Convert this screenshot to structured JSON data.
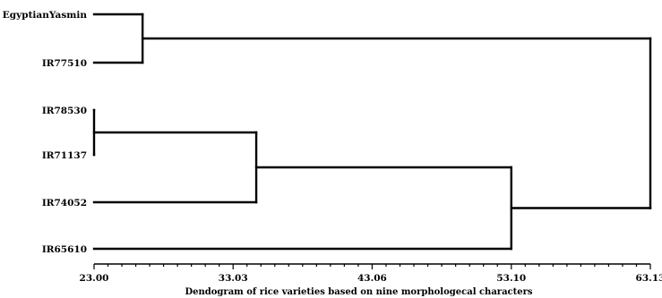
{
  "dendrogram": {
    "leaves": [
      {
        "id": "egyptian",
        "label": "EgyptianYasmin"
      },
      {
        "id": "ir77510",
        "label": "IR77510"
      },
      {
        "id": "ir78530",
        "label": "IR78530"
      },
      {
        "id": "ir71137",
        "label": "IR71137"
      },
      {
        "id": "ir74052",
        "label": "IR74052"
      },
      {
        "id": "ir65610",
        "label": "IR65610"
      }
    ],
    "merges": [
      {
        "id": "m1",
        "left": "ir78530",
        "right": "ir71137",
        "height": 23.0
      },
      {
        "id": "m2",
        "left": "egyptian",
        "right": "ir77510",
        "height": 26.5
      },
      {
        "id": "m3",
        "left": "m1",
        "right": "ir74052",
        "height": 34.7
      },
      {
        "id": "m4",
        "left": "m3",
        "right": "ir65610",
        "height": 53.1
      },
      {
        "id": "m5",
        "left": "m2",
        "right": "m4",
        "height": 63.13
      }
    ],
    "axis": {
      "min": 23.0,
      "max": 63.13,
      "tick_labels": [
        "23.00",
        "33.03",
        "43.06",
        "53.10",
        "63.13"
      ],
      "tick_values": [
        23.0,
        33.03,
        43.06,
        53.1,
        63.13
      ],
      "minor_ticks_between": 9,
      "title": "Dendogram of rice varieties based on nine morphologecal characters"
    }
  }
}
